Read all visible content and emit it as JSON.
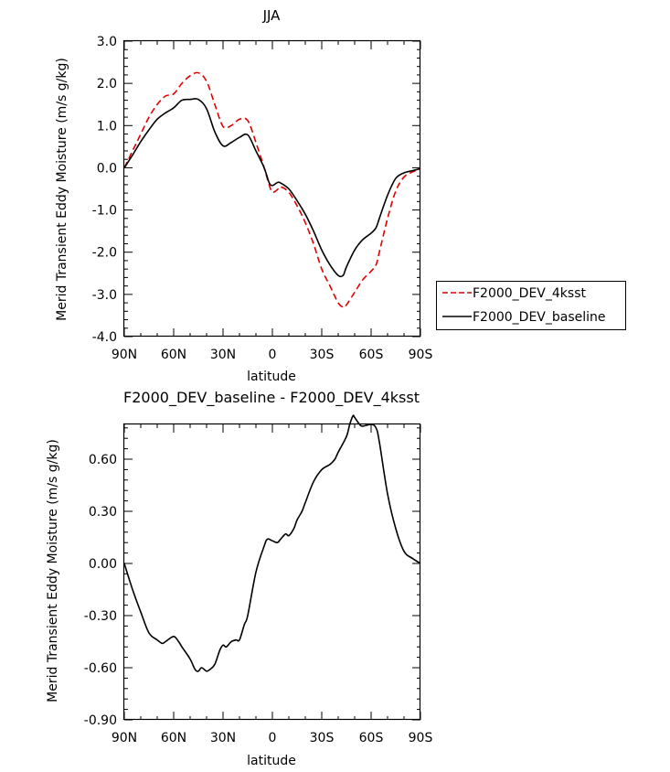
{
  "chart_data": [
    {
      "type": "line",
      "title": "JJA",
      "xlabel": "latitude",
      "ylabel": "Merid Transient Eddy Moisture (m/s g/kg)",
      "xlim": [
        90,
        -90
      ],
      "ylim": [
        -4.0,
        3.0
      ],
      "xticks": [
        90,
        60,
        30,
        0,
        -30,
        -60,
        -90
      ],
      "xtick_labels": [
        "90N",
        "60N",
        "30N",
        "0",
        "30S",
        "60S",
        "90S"
      ],
      "yticks": [
        3.0,
        2.0,
        1.0,
        0.0,
        -1.0,
        -2.0,
        -3.0,
        -4.0
      ],
      "ytick_labels": [
        "3.0",
        "2.0",
        "1.0",
        "0.0",
        "-1.0",
        "-2.0",
        "-3.0",
        "-4.0"
      ],
      "legend": {
        "position": "right",
        "entries": [
          "F2000_DEV_4ksst",
          "F2000_DEV_baseline"
        ]
      },
      "series": [
        {
          "name": "F2000_DEV_4ksst",
          "color": "#e00000",
          "dash": "dashed",
          "x": [
            90,
            85,
            80,
            75,
            70,
            65,
            60,
            55,
            50,
            45,
            40,
            35,
            30,
            25,
            20,
            15,
            10,
            5,
            2,
            0,
            -3,
            -5,
            -10,
            -15,
            -20,
            -25,
            -30,
            -35,
            -40,
            -43,
            -45,
            -50,
            -55,
            -60,
            -63,
            -65,
            -70,
            -75,
            -80,
            -85,
            -90
          ],
          "values": [
            0.0,
            0.4,
            0.8,
            1.2,
            1.5,
            1.7,
            1.75,
            2.0,
            2.18,
            2.25,
            2.05,
            1.5,
            0.98,
            1.0,
            1.15,
            1.12,
            0.6,
            0.0,
            -0.4,
            -0.58,
            -0.52,
            -0.45,
            -0.58,
            -0.9,
            -1.3,
            -1.8,
            -2.4,
            -2.8,
            -3.2,
            -3.3,
            -3.25,
            -2.95,
            -2.65,
            -2.45,
            -2.3,
            -2.0,
            -1.2,
            -0.55,
            -0.22,
            -0.1,
            -0.02
          ]
        },
        {
          "name": "F2000_DEV_baseline",
          "color": "#000000",
          "dash": "solid",
          "x": [
            90,
            85,
            80,
            75,
            70,
            65,
            60,
            55,
            50,
            45,
            40,
            35,
            30,
            25,
            20,
            15,
            10,
            5,
            2,
            0,
            -3,
            -5,
            -10,
            -15,
            -20,
            -25,
            -30,
            -35,
            -40,
            -43,
            -45,
            -50,
            -55,
            -60,
            -63,
            -65,
            -70,
            -75,
            -80,
            -85,
            -90
          ],
          "values": [
            0.0,
            0.3,
            0.62,
            0.9,
            1.15,
            1.3,
            1.42,
            1.6,
            1.62,
            1.62,
            1.4,
            0.85,
            0.52,
            0.6,
            0.72,
            0.78,
            0.4,
            0.0,
            -0.35,
            -0.42,
            -0.35,
            -0.36,
            -0.5,
            -0.78,
            -1.1,
            -1.5,
            -1.95,
            -2.3,
            -2.55,
            -2.55,
            -2.35,
            -1.95,
            -1.7,
            -1.55,
            -1.42,
            -1.2,
            -0.65,
            -0.25,
            -0.12,
            -0.07,
            -0.02
          ]
        }
      ]
    },
    {
      "type": "line",
      "title": "F2000_DEV_baseline - F2000_DEV_4ksst",
      "xlabel": "latitude",
      "ylabel": "Merid Transient Eddy Moisture (m/s g/kg)",
      "xlim": [
        90,
        -90
      ],
      "ylim": [
        -0.9,
        0.8
      ],
      "xticks": [
        90,
        60,
        30,
        0,
        -30,
        -60,
        -90
      ],
      "xtick_labels": [
        "90N",
        "60N",
        "30N",
        "0",
        "30S",
        "60S",
        "90S"
      ],
      "yticks": [
        0.6,
        0.3,
        0.0,
        -0.3,
        -0.6,
        -0.9
      ],
      "ytick_labels": [
        "0.60",
        "0.30",
        "0.00",
        "-0.30",
        "-0.60",
        "-0.90"
      ],
      "series": [
        {
          "name": "F2000_DEV_baseline - F2000_DEV_4ksst",
          "color": "#000000",
          "dash": "solid",
          "x": [
            90,
            85,
            80,
            75,
            70,
            67,
            65,
            60,
            57,
            55,
            50,
            47,
            45,
            43,
            40,
            38,
            35,
            32,
            30,
            28,
            25,
            22,
            20,
            17,
            15,
            10,
            5,
            3,
            0,
            -3,
            -5,
            -8,
            -10,
            -13,
            -15,
            -18,
            -20,
            -25,
            -30,
            -35,
            -38,
            -40,
            -45,
            -47,
            -49,
            -50,
            -53,
            -55,
            -60,
            -63,
            -65,
            -70,
            -75,
            -80,
            -85,
            -90
          ],
          "values": [
            0.0,
            -0.15,
            -0.28,
            -0.4,
            -0.44,
            -0.46,
            -0.45,
            -0.42,
            -0.45,
            -0.48,
            -0.55,
            -0.61,
            -0.62,
            -0.6,
            -0.62,
            -0.61,
            -0.58,
            -0.5,
            -0.47,
            -0.48,
            -0.45,
            -0.44,
            -0.44,
            -0.35,
            -0.3,
            -0.05,
            0.1,
            0.14,
            0.13,
            0.12,
            0.14,
            0.17,
            0.16,
            0.2,
            0.25,
            0.3,
            0.35,
            0.47,
            0.54,
            0.57,
            0.6,
            0.64,
            0.73,
            0.8,
            0.85,
            0.84,
            0.8,
            0.79,
            0.8,
            0.78,
            0.7,
            0.4,
            0.2,
            0.07,
            0.03,
            0.0
          ]
        }
      ]
    }
  ]
}
